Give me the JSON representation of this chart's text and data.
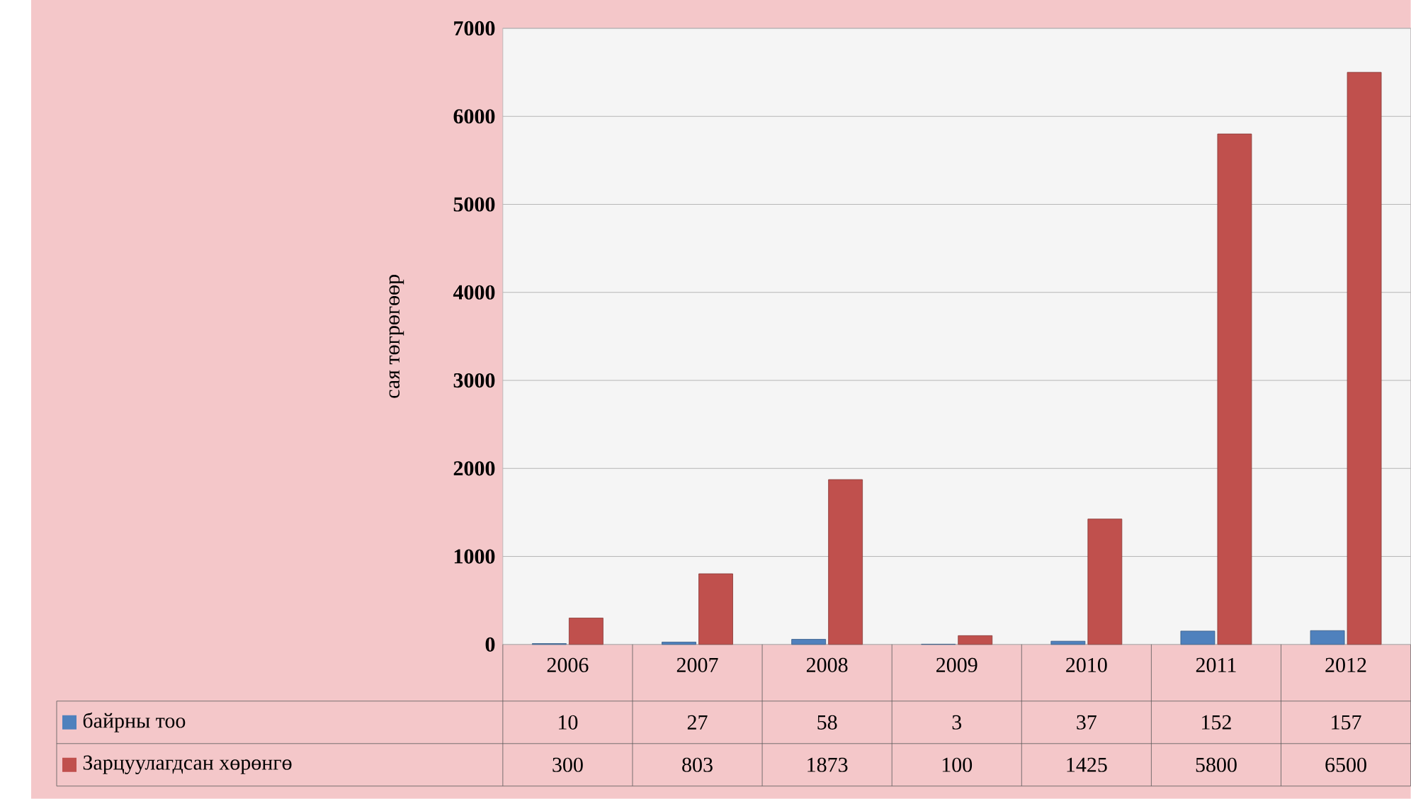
{
  "chart_data": {
    "type": "bar",
    "ylabel": "сая төгрөгөөр",
    "categories": [
      "2006",
      "2007",
      "2008",
      "2009",
      "2010",
      "2011",
      "2012"
    ],
    "series": [
      {
        "name": "байрны тоо",
        "color": "#4f81bd",
        "values": [
          10,
          27,
          58,
          3,
          37,
          152,
          157
        ]
      },
      {
        "name": "Зарцуулагдсан хөрөнгө",
        "color": "#c0504d",
        "values": [
          300,
          803,
          1873,
          100,
          1425,
          5800,
          6500
        ]
      }
    ],
    "ylim": [
      0,
      7000
    ],
    "yticks": [
      0,
      1000,
      2000,
      3000,
      4000,
      5000,
      6000,
      7000
    ],
    "grid": "y",
    "legend": "bottom",
    "data_labels": true
  }
}
